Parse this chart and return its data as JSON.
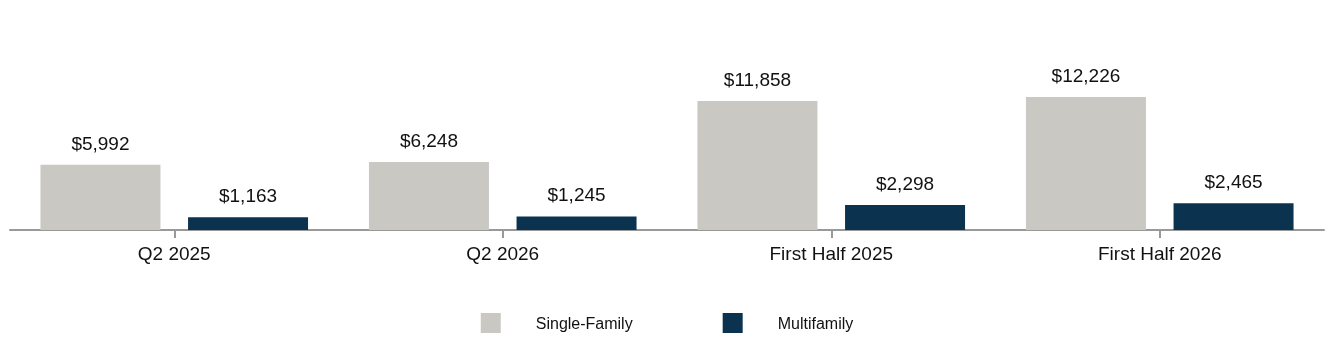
{
  "chart_data": {
    "type": "bar",
    "categories": [
      "Q2 2025",
      "Q2 2026",
      "First Half 2025",
      "First Half 2026"
    ],
    "series": [
      {
        "name": "Single-Family",
        "color": "#cac8c3",
        "values": [
          5992,
          6248,
          11858,
          12226
        ],
        "value_labels": [
          "$5,992",
          "$6,248",
          "$11,858",
          "$12,226"
        ]
      },
      {
        "name": "Multifamily",
        "color": "#0b3350",
        "values": [
          1163,
          1245,
          2298,
          2465
        ],
        "value_labels": [
          "$1,163",
          "$1,245",
          "$2,298",
          "$2,465"
        ]
      }
    ],
    "legend": "bottom",
    "grid": false
  }
}
